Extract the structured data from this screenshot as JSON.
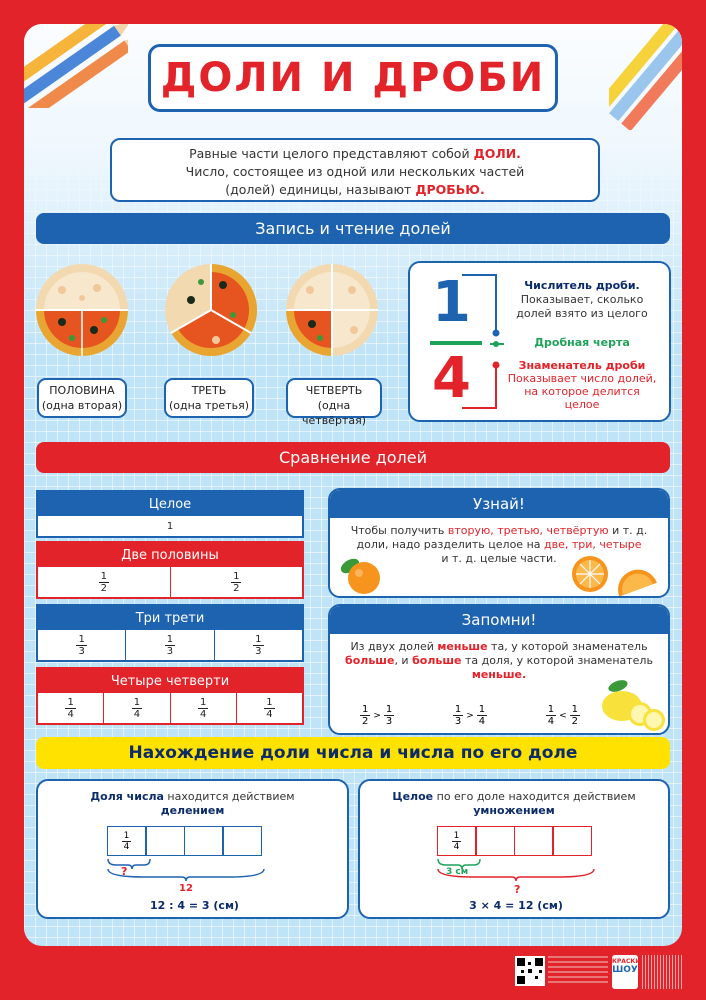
{
  "title": "ДОЛИ И ДРОБИ",
  "intro": {
    "l1_pre": "Равные части целого представляют собой ",
    "l1_key": "ДОЛИ.",
    "l2": "Число, состоящее из одной или нескольких частей",
    "l3_pre": "(долей) единицы, называют ",
    "l3_key": "ДРОБЬЮ."
  },
  "section1": "Запись и чтение долей",
  "pizzas": [
    {
      "name": "ПОЛОВИНА",
      "sub": "(одна вторая)"
    },
    {
      "name": "ТРЕТЬ",
      "sub": "(одна третья)"
    },
    {
      "name": "ЧЕТВЕРТЬ",
      "sub": "(одна четвёртая)"
    }
  ],
  "fraction": {
    "numerator": "1",
    "denominator": "4",
    "num_title": "Числитель дроби.",
    "num_desc": "Показывает, сколько долей взято из целого",
    "line_label": "Дробная черта",
    "den_title": "Знаменатель дроби",
    "den_desc": "Показывает число долей, на которое делится целое"
  },
  "section2": "Сравнение долей",
  "tables": {
    "whole": {
      "title": "Целое",
      "cells": [
        "1"
      ]
    },
    "halves": {
      "title": "Две половины",
      "n": "1",
      "d": "2"
    },
    "thirds": {
      "title": "Три трети",
      "n": "1",
      "d": "3"
    },
    "quarters": {
      "title": "Четыре четверти",
      "n": "1",
      "d": "4"
    }
  },
  "learn": {
    "title": "Узнай!",
    "t1": "Чтобы получить ",
    "t1_key": "вторую, третью, четвёртую",
    "t1b": " и т. д.",
    "t2": "доли, надо разделить целое на ",
    "t2_key": "две, три, четыре",
    "t3": "и т. д. целые части."
  },
  "remember": {
    "title": "Запомни!",
    "t1_pre": "Из двух долей ",
    "t1_key": "меньше",
    "t1_post": " та, у которой знаменатель",
    "t2_key1": "больше",
    "t2_mid": ", и ",
    "t2_key2": "больше",
    "t2_post": " та доля, у которой знаменатель",
    "t3_key": "меньше.",
    "comparisons": [
      {
        "a_n": "1",
        "a_d": "2",
        "op": ">",
        "b_n": "1",
        "b_d": "3"
      },
      {
        "a_n": "1",
        "a_d": "3",
        "op": ">",
        "b_n": "1",
        "b_d": "4"
      },
      {
        "a_n": "1",
        "a_d": "4",
        "op": "<",
        "b_n": "1",
        "b_d": "2"
      }
    ]
  },
  "section3": "Нахождение доли числа и числа по его доле",
  "find_left": {
    "h_key": "Доля числа",
    "h_rest": " находится действием",
    "h2": "делением",
    "n": "1",
    "d": "4",
    "q": "?",
    "total": "12",
    "formula": "12 : 4 = 3 (см)"
  },
  "find_right": {
    "h_key": "Целое",
    "h_rest": " по его доле находится действием",
    "h2": "умножением",
    "n": "1",
    "d": "4",
    "part": "3 см",
    "q": "?",
    "formula": "3 × 4 = 12 (см)"
  },
  "publisher": "ШОУ",
  "publisher_top": "КРАСКИ"
}
